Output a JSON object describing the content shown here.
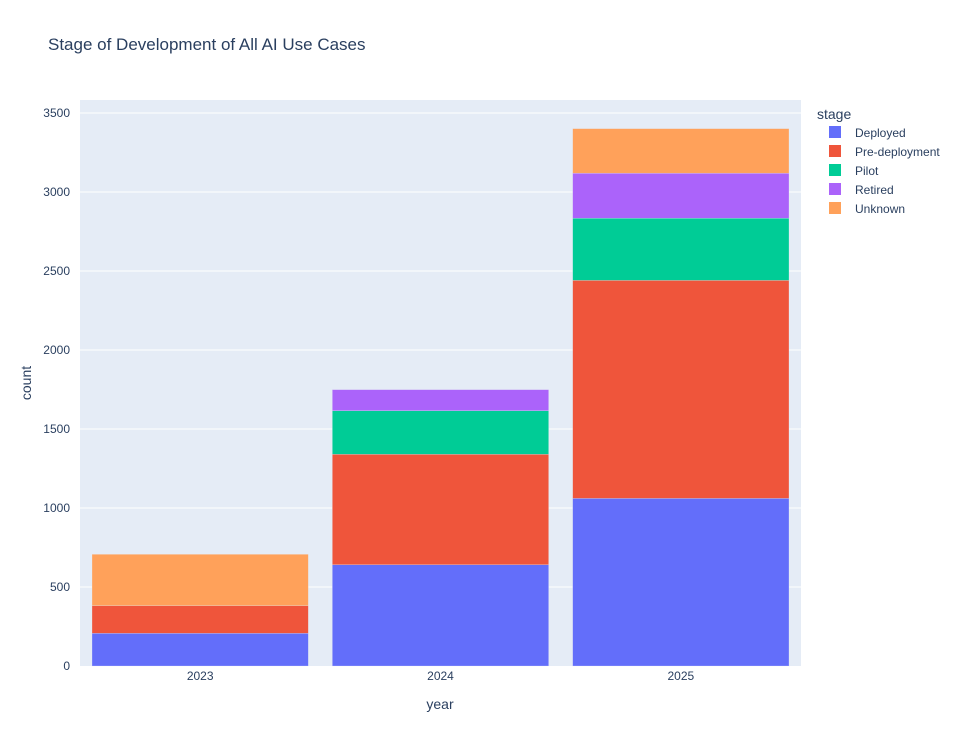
{
  "chart_data": {
    "type": "bar",
    "barmode": "stack",
    "title": "Stage of Development of All AI Use Cases",
    "xlabel": "year",
    "ylabel": "count",
    "categories": [
      "2023",
      "2024",
      "2025"
    ],
    "ylim": [
      0,
      3580
    ],
    "yticks": [
      0,
      500,
      1000,
      1500,
      2000,
      2500,
      3000,
      3500
    ],
    "grid": true,
    "legend": {
      "title": "stage",
      "placement": "right"
    },
    "series": [
      {
        "name": "Deployed",
        "color": "#636efa",
        "values": [
          207,
          641,
          1061
        ]
      },
      {
        "name": "Pre-deployment",
        "color": "#ef553b",
        "values": [
          175,
          699,
          1380
        ]
      },
      {
        "name": "Pilot",
        "color": "#00cc96",
        "values": [
          0,
          276,
          393
        ]
      },
      {
        "name": "Retired",
        "color": "#ab63fa",
        "values": [
          0,
          133,
          285
        ]
      },
      {
        "name": "Unknown",
        "color": "#ffa15a",
        "values": [
          325,
          0,
          282
        ]
      }
    ]
  }
}
